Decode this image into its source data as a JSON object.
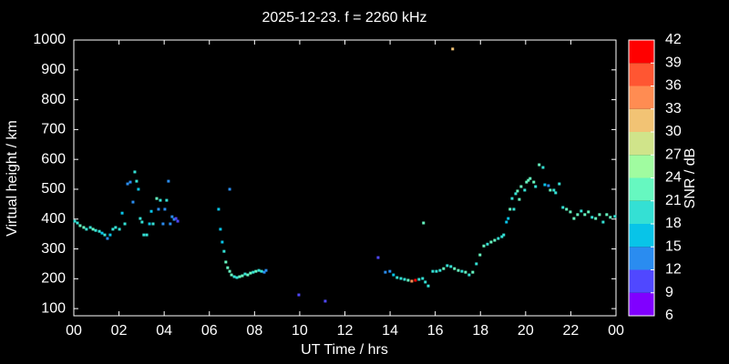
{
  "chart_data": {
    "type": "scatter",
    "title": "2025-12-23. f = 2260 kHz",
    "x_label": "UT Time / hrs",
    "y_label": "Virtual height / km",
    "colorbar_label": "SNR / dB",
    "xlim": [
      0,
      24
    ],
    "xticks": [
      {
        "value": 0,
        "label": "00"
      },
      {
        "value": 2,
        "label": "02"
      },
      {
        "value": 4,
        "label": "04"
      },
      {
        "value": 6,
        "label": "06"
      },
      {
        "value": 8,
        "label": "08"
      },
      10,
      12,
      14,
      16,
      18,
      20,
      22,
      {
        "value": 24,
        "label": "00"
      }
    ],
    "ylim": [
      76,
      1000
    ],
    "yticks": [
      100,
      200,
      300,
      400,
      500,
      600,
      700,
      800,
      900,
      1000
    ],
    "clim": [
      6,
      42
    ],
    "cticks": [
      6,
      9,
      12,
      15,
      18,
      21,
      24,
      27,
      30,
      33,
      36,
      39,
      42
    ],
    "colormap": [
      "#8000ff",
      "#5048ff",
      "#2a8cf0",
      "#08c4e8",
      "#34e0d4",
      "#66f8c0",
      "#a0fca0",
      "#d0e48a",
      "#f2c374",
      "#ff8c52",
      "#ff5632",
      "#ff0000"
    ],
    "x": [
      0.04,
      0.16,
      0.28,
      0.44,
      0.56,
      0.73,
      0.85,
      0.97,
      1.13,
      1.25,
      1.37,
      1.49,
      1.61,
      1.73,
      1.85,
      2.02,
      2.14,
      2.26,
      2.38,
      2.5,
      2.62,
      2.7,
      2.78,
      2.86,
      2.94,
      3.02,
      3.1,
      3.23,
      3.35,
      3.43,
      3.51,
      3.67,
      3.75,
      3.83,
      3.95,
      4.03,
      4.11,
      4.19,
      4.27,
      4.35,
      4.44,
      4.52,
      4.6,
      6.41,
      6.49,
      6.57,
      6.65,
      6.73,
      6.81,
      6.9,
      6.98,
      7.1,
      7.22,
      7.34,
      7.46,
      7.58,
      7.7,
      7.82,
      7.94,
      8.06,
      8.19,
      8.31,
      8.43,
      8.51,
      6.9,
      9.96,
      11.13,
      13.47,
      13.79,
      13.99,
      14.15,
      14.31,
      14.48,
      14.64,
      14.8,
      14.96,
      15.12,
      15.28,
      15.44,
      15.56,
      15.69,
      15.48,
      15.89,
      16.05,
      16.21,
      16.37,
      16.53,
      16.69,
      16.85,
      17.02,
      17.18,
      17.34,
      17.5,
      17.66,
      17.82,
      17.98,
      18.15,
      18.31,
      18.47,
      18.63,
      18.79,
      18.95,
      19.03,
      19.15,
      19.23,
      19.31,
      19.4,
      19.48,
      19.56,
      19.64,
      19.72,
      19.8,
      19.96,
      20.04,
      20.12,
      20.2,
      20.36,
      20.44,
      20.6,
      20.77,
      20.85,
      21.01,
      21.09,
      21.25,
      21.33,
      21.49,
      21.65,
      21.81,
      21.98,
      22.14,
      22.3,
      22.46,
      22.62,
      22.78,
      22.94,
      23.1,
      23.27,
      23.43,
      23.59,
      23.75,
      23.95,
      16.77
    ],
    "values": [
      393,
      387,
      378,
      372,
      366,
      372,
      366,
      362,
      359,
      353,
      347,
      335,
      347,
      366,
      372,
      366,
      420,
      384,
      518,
      524,
      457,
      558,
      527,
      500,
      402,
      390,
      347,
      347,
      384,
      426,
      384,
      469,
      433,
      463,
      384,
      433,
      463,
      527,
      384,
      408,
      399,
      402,
      393,
      433,
      366,
      323,
      292,
      256,
      237,
      225,
      213,
      207,
      204,
      207,
      210,
      216,
      213,
      219,
      222,
      225,
      228,
      225,
      222,
      228,
      500,
      146,
      125,
      271,
      222,
      225,
      213,
      204,
      201,
      198,
      195,
      192,
      195,
      198,
      201,
      189,
      176,
      387,
      225,
      225,
      228,
      234,
      244,
      241,
      234,
      228,
      225,
      222,
      213,
      222,
      250,
      280,
      310,
      316,
      323,
      329,
      335,
      341,
      347,
      390,
      402,
      433,
      469,
      433,
      485,
      494,
      466,
      509,
      497,
      524,
      530,
      536,
      524,
      509,
      582,
      573,
      515,
      512,
      497,
      497,
      488,
      518,
      439,
      433,
      424,
      402,
      415,
      427,
      415,
      424,
      406,
      402,
      415,
      390,
      415,
      406,
      409,
      970
    ],
    "snr": [
      20,
      20,
      21,
      21,
      19,
      20,
      21,
      19,
      20,
      17,
      20,
      13,
      17,
      19,
      20,
      18,
      15,
      19,
      12,
      12,
      13,
      20,
      18,
      17,
      20,
      19,
      20,
      18,
      17,
      15,
      19,
      21,
      14,
      20,
      14,
      13,
      18,
      12,
      13,
      12,
      12,
      11,
      11,
      15,
      15,
      16,
      19,
      21,
      21,
      21,
      21,
      20,
      20,
      21,
      21,
      20,
      21,
      21,
      20,
      21,
      19,
      18,
      14,
      12,
      12,
      10,
      10,
      10,
      14,
      14,
      17,
      19,
      20,
      19,
      21,
      33,
      41,
      20,
      19,
      18,
      20,
      21,
      20,
      20,
      20,
      21,
      20,
      20,
      21,
      21,
      20,
      21,
      20,
      21,
      20,
      21,
      21,
      20,
      21,
      21,
      20,
      19,
      19,
      15,
      17,
      21,
      19,
      18,
      20,
      21,
      21,
      21,
      20,
      21,
      22,
      22,
      21,
      20,
      21,
      20,
      16,
      13,
      21,
      20,
      20,
      19,
      20,
      21,
      22,
      21,
      21,
      20,
      21,
      21,
      20,
      21,
      21,
      20,
      22,
      21,
      20,
      32
    ]
  }
}
